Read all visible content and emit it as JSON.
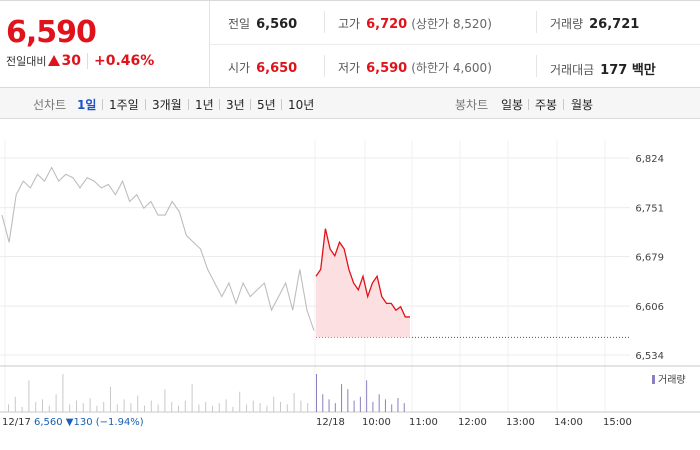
{
  "quote": {
    "price": "6,590",
    "change_label": "전일대비",
    "change_abs": "30",
    "change_pct": "+0.46%",
    "up_color": "#e0121b"
  },
  "stats": {
    "prev_close": {
      "label": "전일",
      "value": "6,560"
    },
    "high": {
      "label": "고가",
      "value": "6,720",
      "sub": "(상한가 8,520)"
    },
    "volume": {
      "label": "거래량",
      "value": "26,721"
    },
    "open": {
      "label": "시가",
      "value": "6,650"
    },
    "low": {
      "label": "저가",
      "value": "6,590",
      "sub": "(하한가 4,600)"
    },
    "amount": {
      "label": "거래대금",
      "value": "177 백만"
    }
  },
  "line_tabs": {
    "label": "선차트",
    "items": [
      "1일",
      "1주일",
      "3개월",
      "1년",
      "3년",
      "5년",
      "10년"
    ],
    "active": "1일"
  },
  "candle_tabs": {
    "label": "봉차트",
    "items": [
      "일봉",
      "주봉",
      "월봉"
    ]
  },
  "chart_data": {
    "type": "line",
    "y_ticks": [
      "6,824",
      "6,751",
      "6,679",
      "6,606",
      "6,534"
    ],
    "ylim": [
      6534,
      6824
    ],
    "x_ticks": [
      "12/17",
      "12/18",
      "10:00",
      "11:00",
      "12:00",
      "13:00",
      "14:00",
      "15:00"
    ],
    "volume_legend": "거래량",
    "prev_day_note": {
      "date": "12/17",
      "price": "6,560",
      "change": "▼130",
      "pct": "(−1.94%)"
    },
    "prev_close_value": 6560,
    "series": [
      {
        "day": "12/17",
        "color": "#bdbdbd",
        "values": [
          6740,
          6700,
          6770,
          6790,
          6780,
          6800,
          6790,
          6810,
          6790,
          6800,
          6795,
          6780,
          6795,
          6790,
          6780,
          6785,
          6770,
          6790,
          6760,
          6770,
          6750,
          6760,
          6740,
          6740,
          6760,
          6745,
          6710,
          6700,
          6690,
          6660,
          6640,
          6620,
          6640,
          6610,
          6640,
          6620,
          6630,
          6640,
          6600,
          6620,
          6640,
          6600,
          6660,
          6600,
          6570
        ]
      },
      {
        "day": "12/18",
        "color": "#e0121b",
        "values": [
          6650,
          6660,
          6720,
          6690,
          6680,
          6700,
          6690,
          6660,
          6640,
          6630,
          6650,
          6620,
          6640,
          6650,
          6620,
          6610,
          6610,
          6600,
          6605,
          6590,
          6590
        ]
      }
    ],
    "volume": {
      "color_prev": "#c9c9c9",
      "color_today": "#8a7fc0",
      "values": [
        6,
        12,
        4,
        25,
        8,
        10,
        5,
        14,
        30,
        6,
        9,
        7,
        11,
        5,
        8,
        20,
        6,
        10,
        7,
        13,
        5,
        9,
        6,
        18,
        8,
        5,
        9,
        22,
        6,
        8,
        5,
        7,
        10,
        4,
        16,
        6,
        9,
        7,
        5,
        12,
        8,
        6,
        15,
        9,
        7,
        30,
        14,
        10,
        7,
        22,
        18,
        9,
        12,
        25,
        8,
        14,
        10,
        6,
        11,
        7
      ]
    }
  }
}
